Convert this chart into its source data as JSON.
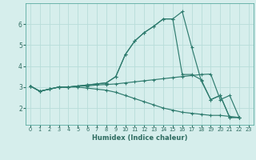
{
  "title": "",
  "xlabel": "Humidex (Indice chaleur)",
  "background_color": "#d6eeec",
  "line_color": "#2e7b6e",
  "grid_color": "#b8ddd9",
  "xlim": [
    -0.5,
    23.5
  ],
  "ylim": [
    1.2,
    7.0
  ],
  "xticks": [
    0,
    1,
    2,
    3,
    4,
    5,
    6,
    7,
    8,
    9,
    10,
    11,
    12,
    13,
    14,
    15,
    16,
    17,
    18,
    19,
    20,
    21,
    22,
    23
  ],
  "yticks": [
    2,
    3,
    4,
    5,
    6
  ],
  "lines": [
    {
      "x": [
        0,
        1,
        2,
        3,
        4,
        5,
        6,
        7,
        8,
        9,
        10,
        11,
        12,
        13,
        14,
        15,
        16,
        17,
        18,
        19,
        20,
        21,
        22
      ],
      "y": [
        3.05,
        2.8,
        2.9,
        3.0,
        3.0,
        3.05,
        3.1,
        3.15,
        3.2,
        3.5,
        4.55,
        5.2,
        5.6,
        5.9,
        6.25,
        6.25,
        6.6,
        4.9,
        3.3,
        2.4,
        2.6,
        1.55,
        1.55
      ]
    },
    {
      "x": [
        0,
        1,
        2,
        3,
        4,
        5,
        6,
        7,
        8,
        9,
        10,
        11,
        12,
        13,
        14,
        15,
        16,
        17,
        18,
        19,
        20,
        21,
        22
      ],
      "y": [
        3.05,
        2.8,
        2.9,
        3.0,
        3.0,
        3.05,
        3.1,
        3.15,
        3.2,
        3.5,
        4.55,
        5.2,
        5.6,
        5.9,
        6.25,
        6.25,
        3.6,
        3.6,
        3.35,
        2.4,
        2.6,
        1.55,
        1.55
      ]
    },
    {
      "x": [
        0,
        1,
        2,
        3,
        4,
        5,
        6,
        7,
        8,
        9,
        10,
        11,
        12,
        13,
        14,
        15,
        16,
        17,
        18,
        19,
        20,
        21,
        22
      ],
      "y": [
        3.05,
        2.8,
        2.9,
        3.0,
        3.0,
        3.05,
        3.05,
        3.1,
        3.12,
        3.15,
        3.2,
        3.25,
        3.3,
        3.35,
        3.4,
        3.45,
        3.5,
        3.55,
        3.6,
        3.62,
        2.4,
        2.6,
        1.55
      ]
    },
    {
      "x": [
        0,
        1,
        2,
        3,
        4,
        5,
        6,
        7,
        8,
        9,
        10,
        11,
        12,
        13,
        14,
        15,
        16,
        17,
        18,
        19,
        20,
        21,
        22
      ],
      "y": [
        3.05,
        2.8,
        2.9,
        3.0,
        3.0,
        3.0,
        2.95,
        2.9,
        2.85,
        2.75,
        2.6,
        2.45,
        2.3,
        2.15,
        2.0,
        1.9,
        1.8,
        1.75,
        1.7,
        1.65,
        1.65,
        1.6,
        1.55
      ]
    }
  ]
}
